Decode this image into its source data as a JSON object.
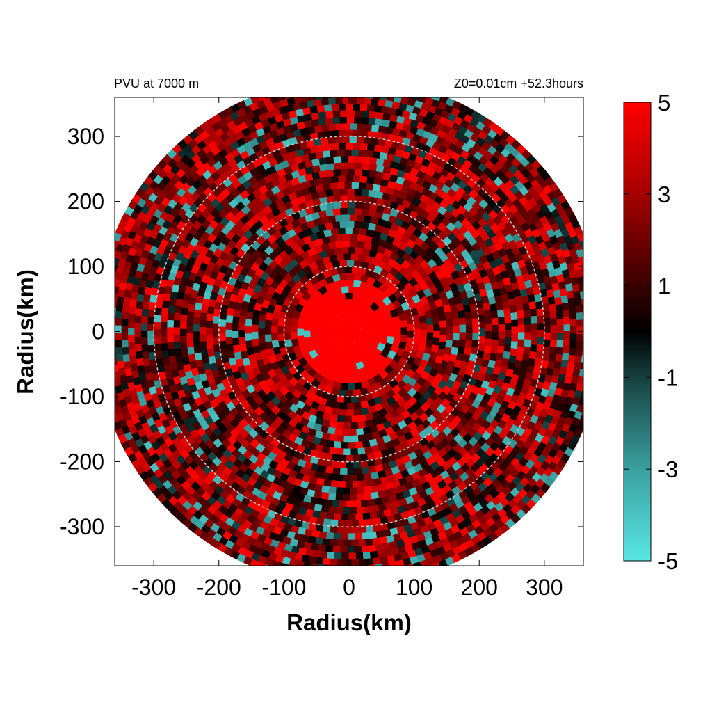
{
  "chart_data": {
    "type": "heatmap",
    "title_left": "PVU at  7000 m",
    "title_right": "Z0=0.01cm  +52.3hours",
    "xlabel": "Radius(km)",
    "ylabel": "Radius(km)",
    "xlim": [
      -360,
      360
    ],
    "ylim": [
      -360,
      360
    ],
    "x_ticks": [
      -300,
      -200,
      -100,
      0,
      100,
      200,
      300
    ],
    "y_ticks": [
      -300,
      -200,
      -100,
      0,
      100,
      200,
      300
    ],
    "x_tick_labels": [
      "-300",
      "-200",
      "-100",
      "0",
      "100",
      "200",
      "300"
    ],
    "y_tick_labels": [
      "-300",
      "-200",
      "-100",
      "0",
      "100",
      "200",
      "300"
    ],
    "domain_radius_km": 390,
    "reference_circles_km": [
      100,
      200,
      300
    ],
    "colorbar": {
      "range": [
        -5,
        5
      ],
      "ticks": [
        5,
        3,
        1,
        -1,
        -3,
        -5
      ],
      "tick_labels": [
        "5",
        "3",
        "1",
        "-1",
        "-3",
        "-5"
      ],
      "colors": [
        {
          "value": -5,
          "color": "#5ae6e6"
        },
        {
          "value": -3,
          "color": "#3aa0a0"
        },
        {
          "value": -1,
          "color": "#164040"
        },
        {
          "value": 0,
          "color": "#000000"
        },
        {
          "value": 1,
          "color": "#3a0000"
        },
        {
          "value": 3,
          "color": "#a50000"
        },
        {
          "value": 5,
          "color": "#ff0000"
        }
      ]
    },
    "field_description": {
      "core_value": 5,
      "core_radius_km": 85,
      "background_mean": 1.5,
      "negative_anomaly_value": -4
    }
  }
}
